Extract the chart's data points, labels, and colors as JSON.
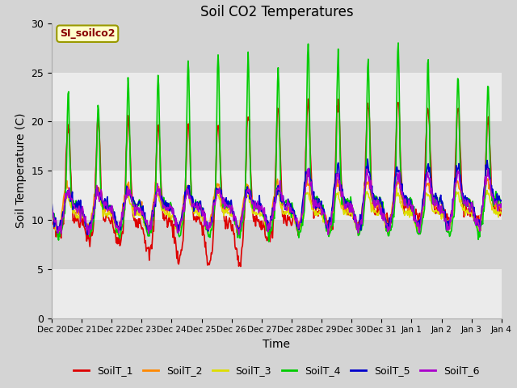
{
  "title": "Soil CO2 Temperatures",
  "xlabel": "Time",
  "ylabel": "Soil Temperature (C)",
  "annotation_text": "SI_soilco2",
  "ylim": [
    0,
    30
  ],
  "yticks": [
    0,
    5,
    10,
    15,
    20,
    25,
    30
  ],
  "series_colors": {
    "SoilT_1": "#dd0000",
    "SoilT_2": "#ff8800",
    "SoilT_3": "#dddd00",
    "SoilT_4": "#00cc00",
    "SoilT_5": "#0000cc",
    "SoilT_6": "#aa00cc"
  },
  "series_labels": [
    "SoilT_1",
    "SoilT_2",
    "SoilT_3",
    "SoilT_4",
    "SoilT_5",
    "SoilT_6"
  ],
  "x_tick_labels": [
    "Dec 20",
    "Dec 21",
    "Dec 22",
    "Dec 23",
    "Dec 24",
    "Dec 25",
    "Dec 26",
    "Dec 27",
    "Dec 28",
    "Dec 29",
    "Dec 30",
    "Dec 31",
    "Jan 1",
    "Jan 2",
    "Jan 3",
    "Jan 4"
  ],
  "fig_bg_color": "#d4d4d4",
  "plot_bg_color": "#d4d4d4",
  "band_colors": [
    "#e8e8e8",
    "#d0d0d0"
  ],
  "linewidth": 1.2,
  "figsize": [
    6.4,
    4.8
  ],
  "dpi": 100
}
